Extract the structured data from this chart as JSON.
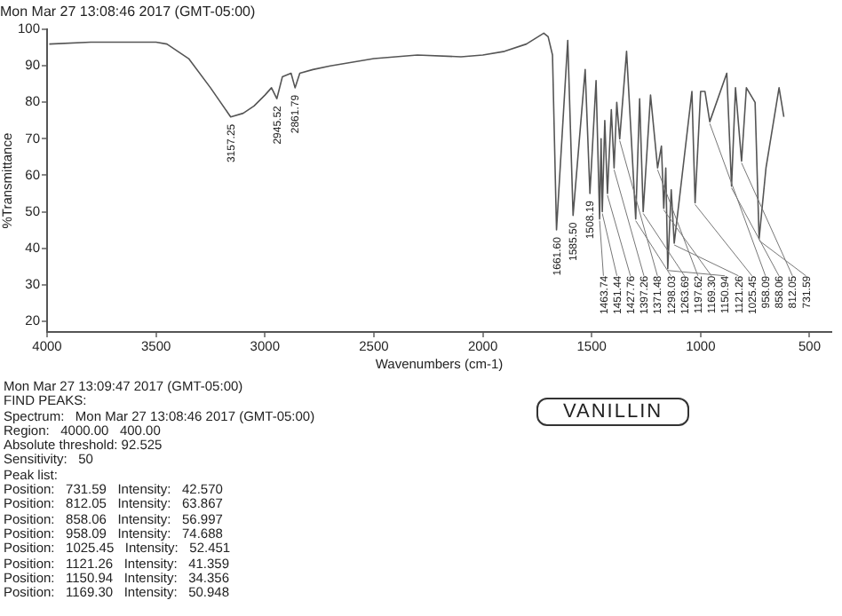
{
  "chart_data": {
    "type": "line",
    "title": "Mon Mar 27 13:08:46 2017 (GMT-05:00)",
    "xlabel": "Wavenumbers (cm-1)",
    "ylabel": "%Transmittance",
    "xlim": [
      4000,
      400
    ],
    "xticks": [
      4000,
      3500,
      3000,
      2500,
      2000,
      1500,
      1000,
      500
    ],
    "ylim": [
      17,
      100
    ],
    "yticks": [
      20,
      30,
      40,
      50,
      60,
      70,
      80,
      90,
      100
    ],
    "grid": false,
    "legend": false,
    "marker": "none",
    "line_style": "solid",
    "series": [
      {
        "color": "#555555",
        "x": [
          3990,
          3800,
          3600,
          3500,
          3450,
          3350,
          3250,
          3157.25,
          3100,
          3050,
          3000,
          2970,
          2945.52,
          2920,
          2880,
          2861.79,
          2840,
          2780,
          2700,
          2500,
          2300,
          2100,
          2000,
          1900,
          1800,
          1720,
          1700,
          1680,
          1661.6,
          1610,
          1585.5,
          1530,
          1508.19,
          1480,
          1463.74,
          1457,
          1451.44,
          1440,
          1427.76,
          1410,
          1397.26,
          1385,
          1371.48,
          1340,
          1298.03,
          1280,
          1263.69,
          1230,
          1197.62,
          1180,
          1169.3,
          1160,
          1150.94,
          1135,
          1121.26,
          1040,
          1025.45,
          1000,
          980,
          958.09,
          880,
          858.06,
          840,
          812.05,
          790,
          750,
          731.59,
          700,
          640,
          618
        ],
        "values": [
          96,
          96.5,
          96.5,
          96.5,
          96,
          92,
          84,
          76,
          77,
          79,
          82,
          84,
          81,
          87,
          88,
          84,
          88,
          89,
          90,
          92,
          93,
          92.5,
          93,
          94,
          96,
          99,
          98,
          93,
          45,
          97,
          49,
          89,
          55,
          86,
          48,
          70,
          50,
          75,
          55,
          78,
          62,
          80,
          70,
          94,
          48,
          81,
          50,
          82,
          62,
          68,
          50.948,
          62,
          34.356,
          56,
          41.359,
          83,
          52.451,
          83,
          83,
          74.688,
          88,
          56.997,
          84,
          63.867,
          84,
          80,
          42.57,
          62,
          84,
          76
        ]
      }
    ],
    "annotations": [
      {
        "text": "3157.25",
        "x": 3157.25,
        "y": 76
      },
      {
        "text": "2945.52",
        "x": 2945.52,
        "y": 81
      },
      {
        "text": "2861.79",
        "x": 2861.79,
        "y": 84
      },
      {
        "text": "1661.60",
        "x": 1661.6,
        "y": 45
      },
      {
        "text": "1585.50",
        "x": 1585.5,
        "y": 49
      },
      {
        "text": "1508.19",
        "x": 1508.19,
        "y": 55
      },
      {
        "text": "1463.74",
        "x": 1463.74,
        "y": 48
      },
      {
        "text": "1451.44",
        "x": 1451.44,
        "y": 50
      },
      {
        "text": "1427.76",
        "x": 1427.76,
        "y": 55
      },
      {
        "text": "1397.26",
        "x": 1397.26,
        "y": 62
      },
      {
        "text": "1371.48",
        "x": 1371.48,
        "y": 70
      },
      {
        "text": "1298.03",
        "x": 1298.03,
        "y": 48
      },
      {
        "text": "1263.69",
        "x": 1263.69,
        "y": 50
      },
      {
        "text": "1197.62",
        "x": 1197.62,
        "y": 62
      },
      {
        "text": "1169.30",
        "x": 1169.3,
        "y": 50.948
      },
      {
        "text": "1150.94",
        "x": 1150.94,
        "y": 34.356
      },
      {
        "text": "1121.26",
        "x": 1121.26,
        "y": 41.359
      },
      {
        "text": "1025.45",
        "x": 1025.45,
        "y": 52.451
      },
      {
        "text": "958.09",
        "x": 958.09,
        "y": 74.688
      },
      {
        "text": "858.06",
        "x": 858.06,
        "y": 56.997
      },
      {
        "text": "812.05",
        "x": 812.05,
        "y": 63.867
      },
      {
        "text": "731.59",
        "x": 731.59,
        "y": 42.57
      },
      "Mon Mar 27 13:09:47 2017 (GMT-05:00)",
      "FIND PEAKS:",
      "Spectrum:   Mon Mar 27 13:08:46 2017 (GMT-05:00)",
      "Region:   4000.00   400.00",
      "Absolute threshold: 92.525",
      "Sensitivity:   50",
      "Peak list:",
      "Position:   731.59   Intensity:   42.570",
      "Position:   812.05   Intensity:   63.867",
      "Position:   858.06   Intensity:   56.997",
      "Position:   958.09   Intensity:   74.688",
      "Position:   1025.45   Intensity:   52.451",
      "Position:   1121.26   Intensity:   41.359",
      "Position:   1150.94   Intensity:   34.356",
      "Position:   1169.30   Intensity:   50.948",
      "VANILLIN"
    ]
  }
}
